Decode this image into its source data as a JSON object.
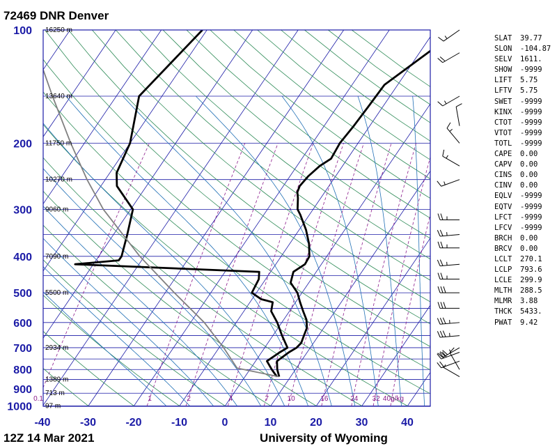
{
  "title": "72469 DNR Denver",
  "footer": {
    "left": "12Z 14 Mar 2021",
    "right": "University of Wyoming"
  },
  "colors": {
    "isobar": "#1a1aa6",
    "isotherm": "#1a1aa6",
    "dry_adiabat": "#2e8b57",
    "moist_adiabat": "#1f6fb5",
    "mixing_ratio": "#8b1a8b",
    "parcel": "#808080",
    "sounding": "#000000"
  },
  "indices": [
    {
      "name": "SLAT",
      "value": "39.77"
    },
    {
      "name": "SLON",
      "value": "-104.87"
    },
    {
      "name": "SELV",
      "value": "1611."
    },
    {
      "name": "SHOW",
      "value": "-9999"
    },
    {
      "name": "LIFT",
      "value": "5.75"
    },
    {
      "name": "LFTV",
      "value": "5.75"
    },
    {
      "name": "SWET",
      "value": "-9999"
    },
    {
      "name": "KINX",
      "value": "-9999"
    },
    {
      "name": "CTOT",
      "value": "-9999"
    },
    {
      "name": "VTOT",
      "value": "-9999"
    },
    {
      "name": "TOTL",
      "value": "-9999"
    },
    {
      "name": "CAPE",
      "value": "0.00"
    },
    {
      "name": "CAPV",
      "value": "0.00"
    },
    {
      "name": "CINS",
      "value": "0.00"
    },
    {
      "name": "CINV",
      "value": "0.00"
    },
    {
      "name": "EQLV",
      "value": "-9999"
    },
    {
      "name": "EQTV",
      "value": "-9999"
    },
    {
      "name": "LFCT",
      "value": "-9999"
    },
    {
      "name": "LFCV",
      "value": "-9999"
    },
    {
      "name": "BRCH",
      "value": "0.00"
    },
    {
      "name": "BRCV",
      "value": "0.00"
    },
    {
      "name": "LCLT",
      "value": "270.1"
    },
    {
      "name": "LCLP",
      "value": "793.6"
    },
    {
      "name": "LCLE",
      "value": "299.9"
    },
    {
      "name": "MLTH",
      "value": "288.5"
    },
    {
      "name": "MLMR",
      "value": "3.88"
    },
    {
      "name": "THCK",
      "value": "5433."
    },
    {
      "name": "PWAT",
      "value": "9.42"
    }
  ],
  "chart_data": {
    "type": "line",
    "title": "72469 DNR Denver",
    "xlabel": "",
    "ylabel": "",
    "temperature_ticks": [
      "-40",
      "-30",
      "-20",
      "-10",
      "0",
      "10",
      "20",
      "30",
      "40"
    ],
    "pressure_ticks": [
      "100",
      "200",
      "300",
      "400",
      "500",
      "600",
      "700",
      "800",
      "900",
      "1000"
    ],
    "xlim": [
      -40,
      45
    ],
    "ylim": [
      1000,
      100
    ],
    "yscale": "log",
    "pressure_levels": [
      1000,
      925,
      850,
      800,
      750,
      700,
      650,
      600,
      550,
      500,
      450,
      400,
      350,
      300,
      250,
      200,
      150,
      100
    ],
    "height_labels": [
      {
        "pressure": 100,
        "text": "16250 m"
      },
      {
        "pressure": 150,
        "text": "13640 m"
      },
      {
        "pressure": 200,
        "text": "11750 m"
      },
      {
        "pressure": 250,
        "text": "10270 m"
      },
      {
        "pressure": 300,
        "text": "9060 m"
      },
      {
        "pressure": 400,
        "text": "7090 m"
      },
      {
        "pressure": 500,
        "text": "5500 m"
      },
      {
        "pressure": 700,
        "text": "2934 m"
      },
      {
        "pressure": 850,
        "text": "1389 m"
      },
      {
        "pressure": 925,
        "text": "713 m"
      },
      {
        "pressure": 1000,
        "text": "97 m"
      }
    ],
    "mixing_ratio_labels": [
      "0.1",
      "1",
      "2",
      "4",
      "7",
      "10",
      "16",
      "24",
      "32",
      "40g/kg"
    ],
    "mixing_ratio_values": [
      0.1,
      1,
      2,
      4,
      7,
      10,
      16,
      24,
      32,
      40
    ],
    "series": [
      {
        "name": "",
        "role": "temperature",
        "color": "#000000",
        "points": [
          {
            "p": 836,
            "t": 7.5
          },
          {
            "p": 800,
            "t": 6.0
          },
          {
            "p": 760,
            "t": 4.7
          },
          {
            "p": 720,
            "t": 6.0
          },
          {
            "p": 700,
            "t": 7.0
          },
          {
            "p": 680,
            "t": 7.3
          },
          {
            "p": 650,
            "t": 6.8
          },
          {
            "p": 620,
            "t": 6.3
          },
          {
            "p": 590,
            "t": 5.0
          },
          {
            "p": 560,
            "t": 3.0
          },
          {
            "p": 530,
            "t": 1.0
          },
          {
            "p": 500,
            "t": -1.0
          },
          {
            "p": 470,
            "t": -4.0
          },
          {
            "p": 440,
            "t": -5.0
          },
          {
            "p": 420,
            "t": -3.6
          },
          {
            "p": 400,
            "t": -3.8
          },
          {
            "p": 370,
            "t": -5.8
          },
          {
            "p": 340,
            "t": -8.5
          },
          {
            "p": 310,
            "t": -12.0
          },
          {
            "p": 300,
            "t": -13.4
          },
          {
            "p": 280,
            "t": -15.0
          },
          {
            "p": 270,
            "t": -16.0
          },
          {
            "p": 260,
            "t": -16.4
          },
          {
            "p": 245,
            "t": -16.0
          },
          {
            "p": 230,
            "t": -15.0
          },
          {
            "p": 220,
            "t": -13.6
          },
          {
            "p": 200,
            "t": -14.0
          },
          {
            "p": 180,
            "t": -13.5
          },
          {
            "p": 160,
            "t": -13.2
          },
          {
            "p": 140,
            "t": -12.9
          },
          {
            "p": 100,
            "t": -4.8
          }
        ]
      },
      {
        "name": "",
        "role": "dewpoint",
        "color": "#000000",
        "points": [
          {
            "p": 836,
            "t": 7.0
          },
          {
            "p": 800,
            "t": 4.8
          },
          {
            "p": 760,
            "t": 2.5
          },
          {
            "p": 720,
            "t": 4.0
          },
          {
            "p": 700,
            "t": 5.0
          },
          {
            "p": 650,
            "t": 2.0
          },
          {
            "p": 600,
            "t": -1.0
          },
          {
            "p": 560,
            "t": -4.0
          },
          {
            "p": 530,
            "t": -5.0
          },
          {
            "p": 520,
            "t": -8.0
          },
          {
            "p": 500,
            "t": -11.0
          },
          {
            "p": 460,
            "t": -11.5
          },
          {
            "p": 440,
            "t": -12.5
          },
          {
            "p": 420,
            "t": -54.0
          },
          {
            "p": 410,
            "t": -45.0
          },
          {
            "p": 400,
            "t": -45.0
          },
          {
            "p": 350,
            "t": -47.0
          },
          {
            "p": 300,
            "t": -49.5
          },
          {
            "p": 260,
            "t": -56.5
          },
          {
            "p": 240,
            "t": -58.5
          },
          {
            "p": 200,
            "t": -60.0
          },
          {
            "p": 150,
            "t": -65.0
          },
          {
            "p": 100,
            "t": -61.0
          }
        ]
      },
      {
        "name": "",
        "role": "parcel",
        "color": "#808080",
        "points": [
          {
            "p": 836,
            "t": 7.4
          },
          {
            "p": 793.6,
            "t": -3.0
          },
          {
            "p": 700,
            "t": -9.0
          },
          {
            "p": 600,
            "t": -17.0
          },
          {
            "p": 500,
            "t": -28.0
          },
          {
            "p": 400,
            "t": -41.0
          },
          {
            "p": 300,
            "t": -56.0
          },
          {
            "p": 250,
            "t": -64.0
          },
          {
            "p": 200,
            "t": -73.0
          },
          {
            "p": 150,
            "t": -84.0
          },
          {
            "p": 100,
            "t": -99.0
          }
        ]
      }
    ],
    "wind_barbs": [
      {
        "p": 836,
        "dir": 300,
        "speed": 5
      },
      {
        "p": 800,
        "dir": 330,
        "speed": 10
      },
      {
        "p": 760,
        "dir": 250,
        "speed": 20
      },
      {
        "p": 720,
        "dir": 250,
        "speed": 30
      },
      {
        "p": 700,
        "dir": 240,
        "speed": 35
      },
      {
        "p": 650,
        "dir": 265,
        "speed": 35
      },
      {
        "p": 600,
        "dir": 265,
        "speed": 35
      },
      {
        "p": 550,
        "dir": 270,
        "speed": 30
      },
      {
        "p": 500,
        "dir": 270,
        "speed": 30
      },
      {
        "p": 460,
        "dir": 270,
        "speed": 25
      },
      {
        "p": 420,
        "dir": 265,
        "speed": 25
      },
      {
        "p": 380,
        "dir": 270,
        "speed": 25
      },
      {
        "p": 350,
        "dir": 265,
        "speed": 25
      },
      {
        "p": 320,
        "dir": 270,
        "speed": 25
      },
      {
        "p": 250,
        "dir": 250,
        "speed": 15
      },
      {
        "p": 230,
        "dir": 300,
        "speed": 15
      },
      {
        "p": 200,
        "dir": 320,
        "speed": 15
      },
      {
        "p": 180,
        "dir": 350,
        "speed": 10
      },
      {
        "p": 150,
        "dir": 240,
        "speed": 15
      },
      {
        "p": 115,
        "dir": 240,
        "speed": 20
      },
      {
        "p": 100,
        "dir": 235,
        "speed": 15
      }
    ]
  }
}
